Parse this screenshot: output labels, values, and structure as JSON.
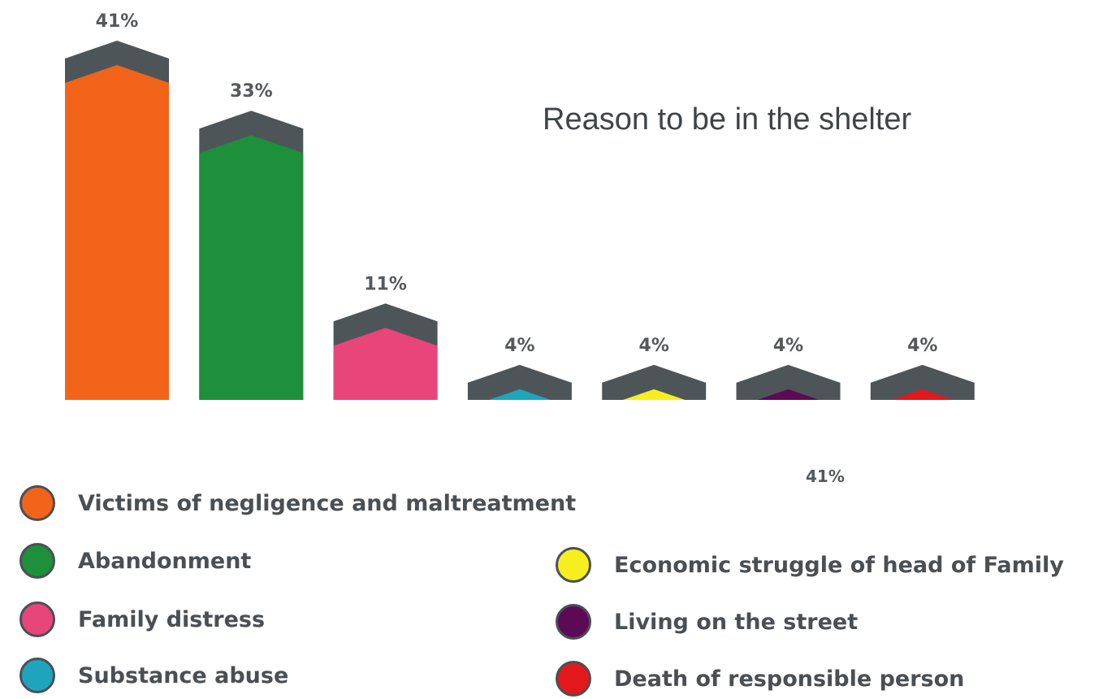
{
  "chart_data": {
    "type": "bar",
    "title": "Reason to be in the shelter",
    "categories": [
      "Victims of negligence and maltreatment",
      "Abandonment",
      "Family distress",
      "Substance abuse",
      "Economic struggle of head of Family",
      "Living on the street",
      "Death of responsible person"
    ],
    "values": [
      41,
      33,
      11,
      4,
      4,
      4,
      4
    ],
    "value_labels": [
      "41%",
      "33%",
      "11%",
      "4%",
      "4%",
      "4%",
      "4%"
    ],
    "colors": [
      "#f26419",
      "#1e8f3a",
      "#e8457a",
      "#1ea5bd",
      "#f7ee1f",
      "#5c0a55",
      "#e3181b"
    ],
    "cap_color": "#4e5559",
    "ylim": [
      0,
      41
    ],
    "legend_position": "bottom",
    "stray_label": "41%"
  }
}
